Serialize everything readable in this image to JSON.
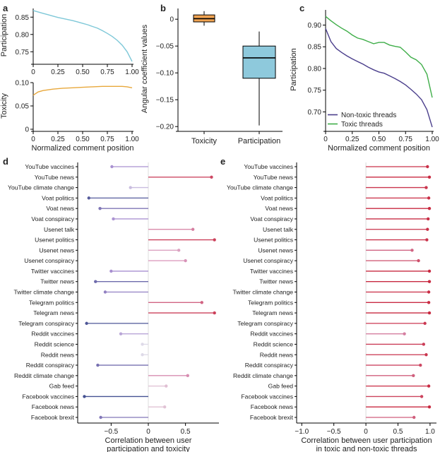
{
  "panel_labels": [
    "a",
    "b",
    "c",
    "d",
    "e"
  ],
  "chart_data": [
    {
      "id": "a_top",
      "type": "line",
      "panel": "a",
      "xlabel": "",
      "ylabel": "Participation",
      "xlim": [
        0,
        1
      ],
      "ylim": [
        0.72,
        0.875
      ],
      "xticks": [
        "0",
        "0.25",
        "0.50",
        "0.75",
        "1.00"
      ],
      "yticks": [
        0.75,
        0.8,
        0.85
      ],
      "ytick_labels": [
        "0.75",
        "0.80",
        "0.85"
      ],
      "color": "#7ec8d8",
      "x": [
        0,
        0.05,
        0.1,
        0.15,
        0.2,
        0.25,
        0.3,
        0.35,
        0.4,
        0.45,
        0.5,
        0.55,
        0.6,
        0.65,
        0.7,
        0.75,
        0.8,
        0.85,
        0.9,
        0.95,
        1.0
      ],
      "y": [
        0.869,
        0.865,
        0.861,
        0.857,
        0.853,
        0.849,
        0.846,
        0.843,
        0.84,
        0.836,
        0.832,
        0.828,
        0.823,
        0.818,
        0.811,
        0.803,
        0.794,
        0.783,
        0.769,
        0.75,
        0.722
      ]
    },
    {
      "id": "a_bottom",
      "type": "line",
      "panel": "a",
      "xlabel": "Normalized comment position",
      "ylabel": "Toxicity",
      "xlim": [
        0,
        1
      ],
      "ylim": [
        0,
        0.1
      ],
      "xticks": [
        "0",
        "0.25",
        "0.50",
        "0.75",
        "1.00"
      ],
      "yticks": [
        0,
        0.05,
        0.1
      ],
      "ytick_labels": [
        "0",
        "0.05",
        "0.10"
      ],
      "color": "#e8a83c",
      "x": [
        0,
        0.05,
        0.1,
        0.2,
        0.3,
        0.4,
        0.5,
        0.6,
        0.7,
        0.8,
        0.9,
        0.95,
        1.0
      ],
      "y": [
        0.073,
        0.08,
        0.083,
        0.086,
        0.088,
        0.089,
        0.09,
        0.091,
        0.092,
        0.092,
        0.092,
        0.091,
        0.089
      ]
    },
    {
      "id": "b",
      "type": "box",
      "panel": "b",
      "ylabel": "Angular coefficient values",
      "ylim": [
        -0.205,
        0.02
      ],
      "yticks": [
        0,
        -0.05,
        -0.1,
        -0.15,
        -0.2
      ],
      "ytick_labels": [
        "0",
        "−0.05",
        "−0.10",
        "−0.15",
        "−0.20"
      ],
      "boxes": [
        {
          "name": "Toxicity",
          "whisker_low": -0.012,
          "q1": -0.005,
          "median": 0.001,
          "q3": 0.008,
          "whisker_high": 0.015,
          "color": "#f0a352"
        },
        {
          "name": "Participation",
          "whisker_low": -0.198,
          "q1": -0.11,
          "median": -0.072,
          "q3": -0.05,
          "whisker_high": -0.023,
          "color": "#8ec9dc"
        }
      ]
    },
    {
      "id": "c",
      "type": "line",
      "panel": "c",
      "xlabel": "Normalized comment position",
      "ylabel": "Participation",
      "xlim": [
        0,
        1
      ],
      "ylim": [
        0.66,
        0.935
      ],
      "xticks": [
        "0",
        "0.25",
        "0.50",
        "0.75",
        "1.00"
      ],
      "yticks": [
        0.7,
        0.75,
        0.8,
        0.85,
        0.9
      ],
      "ytick_labels": [
        "0.70",
        "0.75",
        "0.80",
        "0.85",
        "0.90"
      ],
      "legend_position": "bottom-left",
      "x": [
        0,
        0.05,
        0.1,
        0.15,
        0.2,
        0.25,
        0.3,
        0.35,
        0.4,
        0.45,
        0.5,
        0.55,
        0.6,
        0.65,
        0.7,
        0.75,
        0.8,
        0.85,
        0.9,
        0.95,
        1.0
      ],
      "series": [
        {
          "name": "Non-toxic threads",
          "color": "#4b3f8c",
          "values": [
            0.892,
            0.862,
            0.846,
            0.837,
            0.829,
            0.822,
            0.816,
            0.81,
            0.803,
            0.797,
            0.792,
            0.789,
            0.783,
            0.777,
            0.77,
            0.762,
            0.752,
            0.741,
            0.728,
            0.705,
            0.665
          ]
        },
        {
          "name": "Toxic threads",
          "color": "#3fae49",
          "values": [
            0.92,
            0.91,
            0.901,
            0.893,
            0.886,
            0.877,
            0.87,
            0.867,
            0.862,
            0.857,
            0.86,
            0.86,
            0.854,
            0.851,
            0.849,
            0.838,
            0.826,
            0.82,
            0.809,
            0.787,
            0.733
          ]
        }
      ]
    },
    {
      "id": "d",
      "type": "lollipop",
      "panel": "d",
      "xlabel_lines": [
        "Correlation between user",
        "participation and toxicity"
      ],
      "xlim": [
        -0.95,
        0.95
      ],
      "xticks": [
        -0.5,
        0,
        0.5
      ],
      "xtick_labels": [
        "−0.5",
        "0",
        "0.5"
      ],
      "categories": [
        "YouTube vaccines",
        "YouTube news",
        "YouTube climate change",
        "Voat politics",
        "Voat news",
        "Voat conspiracy",
        "Usenet talk",
        "Usenet politics",
        "Usenet news",
        "Usenet conspiracy",
        "Twitter vaccines",
        "Twitter news",
        "Twitter climate change",
        "Telegram politics",
        "Telegram news",
        "Telegram conspiracy",
        "Reddit vaccines",
        "Reddit science",
        "Reddit news",
        "Reddit conspiracy",
        "Reddit climate change",
        "Gab feed",
        "Facebook vaccines",
        "Facebook news",
        "Facebook brexit"
      ],
      "values": [
        -0.49,
        0.85,
        -0.24,
        -0.8,
        -0.65,
        -0.47,
        0.6,
        0.89,
        0.41,
        0.5,
        -0.5,
        -0.71,
        -0.58,
        0.72,
        0.89,
        -0.83,
        -0.37,
        -0.08,
        -0.08,
        -0.68,
        0.53,
        0.24,
        -0.86,
        0.22,
        -0.64
      ]
    },
    {
      "id": "e",
      "type": "lollipop",
      "panel": "e",
      "xlabel_lines": [
        "Correlation between user participation",
        "in toxic and non-toxic threads"
      ],
      "xlim": [
        -1.08,
        1.1
      ],
      "xticks": [
        -1.0,
        -0.5,
        0,
        0.5,
        1.0
      ],
      "xtick_labels": [
        "−1.0",
        "−0.5",
        "0",
        "0.5",
        "1.0"
      ],
      "categories": [
        "YouTube vaccines",
        "YouTube news",
        "YouTube climate change",
        "Voat politics",
        "Voat news",
        "Voat conspiracy",
        "Usenet talk",
        "Usenet politics",
        "Usenet news",
        "Usenet conspiracy",
        "Twitter vaccines",
        "Twitter news",
        "Twitter climate change",
        "Telegram politics",
        "Telegram news",
        "Telegram conspiracy",
        "Reddit vaccines",
        "Reddit science",
        "Reddit news",
        "Reddit conspiracy",
        "Reddit climate change",
        "Gab feed",
        "Facebook vaccines",
        "Facebook news",
        "Facebook brexit"
      ],
      "values": [
        0.96,
        0.99,
        0.94,
        0.98,
        0.99,
        0.97,
        0.96,
        0.95,
        0.72,
        0.82,
        0.99,
        0.99,
        0.98,
        0.98,
        0.99,
        0.92,
        0.6,
        0.9,
        0.94,
        0.85,
        0.74,
        0.98,
        0.87,
        0.99,
        0.75
      ]
    }
  ]
}
